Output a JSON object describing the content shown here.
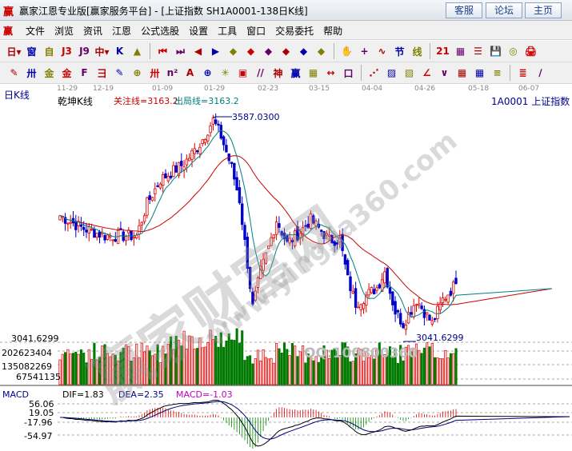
{
  "window": {
    "title": "赢家江恩专业版[赢家服务平台] - [上证指数  SH1A0001-138日K线]",
    "logo": "赢",
    "buttons": [
      "客服",
      "论坛",
      "主页"
    ]
  },
  "menu": {
    "logo": "赢",
    "items": [
      "文件",
      "浏览",
      "资讯",
      "江恩",
      "公式选股",
      "设置",
      "工具",
      "窗口",
      "交易委托",
      "帮助"
    ]
  },
  "toolbar1": [
    "日▾",
    "窗",
    "自",
    "J3",
    "J9",
    "中▾",
    "K",
    "▲",
    "⏮",
    "⏭",
    "◀",
    "▶",
    "◆",
    "◆",
    "◆",
    "◆",
    "◆",
    "◆",
    "✋",
    "+",
    "∿",
    "节",
    "线",
    "21",
    "▦",
    "☰",
    "💾",
    "◎",
    "🖨"
  ],
  "toolbar2": [
    "✎",
    "卅",
    "金",
    "金",
    "F",
    "彐",
    "✎",
    "⊕",
    "卅",
    "n²",
    "A",
    "⊕",
    "✳",
    "▣",
    "//",
    "神",
    "赢",
    "▦",
    "↔",
    "口",
    "⋰",
    "▨",
    "▧",
    "∠",
    "∨",
    "▦",
    "▦",
    "≡",
    "≣",
    "∕"
  ],
  "chart": {
    "period_label": "日K线",
    "indicator_name": "乾坤K线",
    "focus_line": "关注线=3163.2",
    "exit_line": "出局线=3163.2",
    "symbol": "1A0001 上证指数",
    "dates": [
      "11-29",
      "12-19",
      "01-09",
      "01-29",
      "02-23",
      "03-15",
      "04-04",
      "04-26",
      "05-18",
      "06-07"
    ],
    "high_label": "3587.0300",
    "low_label": "3041.6299",
    "price_axis_label": "3041.6299",
    "volume_axis": [
      "202623404",
      "135082269",
      "67541135"
    ],
    "watermark": "赢家财富网",
    "watermark_url": "www.yingjia360.com",
    "qq": "QQ:100800360",
    "macd": {
      "name": "MACD",
      "dif": "DIF=1.83",
      "dea": "DEA=2.35",
      "macd": "MACD=-1.03",
      "axis": [
        "56.06",
        "19.05",
        "-17.96",
        "-54.97"
      ]
    },
    "price_path": [
      [
        0,
        3349
      ],
      [
        8,
        3320
      ],
      [
        17,
        3300
      ],
      [
        29,
        3300
      ],
      [
        33,
        3378
      ],
      [
        38,
        3436
      ],
      [
        47,
        3475
      ],
      [
        53,
        3523
      ],
      [
        58,
        3581
      ],
      [
        61,
        3542
      ],
      [
        65,
        3465
      ],
      [
        68,
        3387
      ],
      [
        71,
        3232
      ],
      [
        73,
        3126
      ],
      [
        76,
        3213
      ],
      [
        79,
        3271
      ],
      [
        82,
        3339
      ],
      [
        86,
        3281
      ],
      [
        91,
        3310
      ],
      [
        95,
        3339
      ],
      [
        102,
        3290
      ],
      [
        106,
        3290
      ],
      [
        109,
        3194
      ],
      [
        112,
        3136
      ],
      [
        120,
        3174
      ],
      [
        123,
        3213
      ],
      [
        127,
        3116
      ],
      [
        130,
        3087
      ],
      [
        135,
        3145
      ],
      [
        141,
        3087
      ],
      [
        145,
        3145
      ],
      [
        150,
        3184
      ]
    ],
    "price_range": [
      3041.63,
      3587.03
    ],
    "colors": {
      "up": "#e00000",
      "down": "#0000cc",
      "ma_slow": "#cc0000",
      "ma_fast": "#008080",
      "vol_up": "#e00000",
      "vol_down": "#007a00",
      "dif": "#000000",
      "dea": "#000080"
    }
  }
}
